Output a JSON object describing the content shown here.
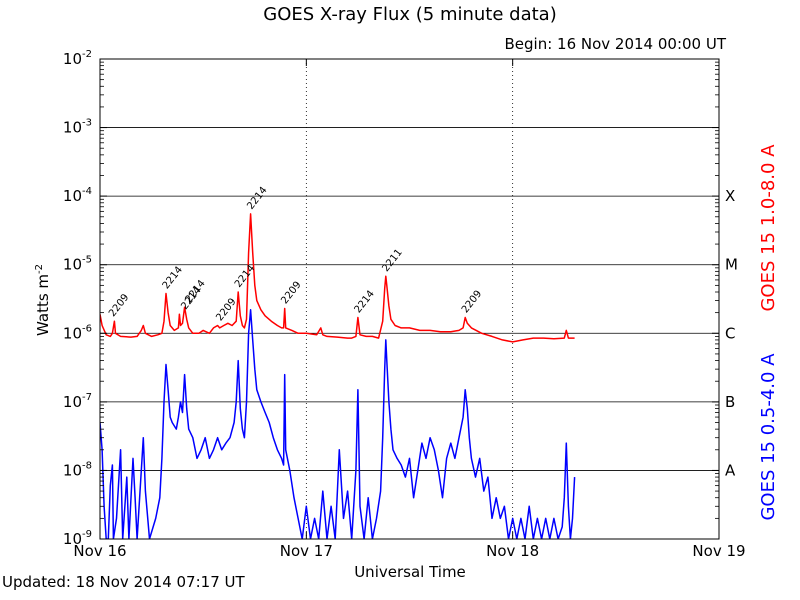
{
  "chart_data": {
    "type": "line",
    "title": "GOES X-ray Flux (5 minute data)",
    "begin_label": "Begin: 16 Nov 2014 00:00 UT",
    "updated_label": "Updated: 18 Nov 2014 07:17 UT",
    "xlabel": "Universal Time",
    "ylabel_base": "Watts m",
    "ylabel_exp": "-2",
    "x_units": "days since 16 Nov 2014 00:00 UT",
    "xlim": [
      0,
      3
    ],
    "x_ticks": [
      {
        "value": 0,
        "label": "Nov 16"
      },
      {
        "value": 1,
        "label": "Nov 17"
      },
      {
        "value": 2,
        "label": "Nov 18"
      },
      {
        "value": 3,
        "label": "Nov 19"
      }
    ],
    "y_scale": "log",
    "ylim": [
      1e-09,
      0.01
    ],
    "y_ticks": [
      {
        "exp": -9,
        "base": "10",
        "sup": "-9"
      },
      {
        "exp": -8,
        "base": "10",
        "sup": "-8"
      },
      {
        "exp": -7,
        "base": "10",
        "sup": "-7"
      },
      {
        "exp": -6,
        "base": "10",
        "sup": "-6"
      },
      {
        "exp": -5,
        "base": "10",
        "sup": "-5"
      },
      {
        "exp": -4,
        "base": "10",
        "sup": "-4"
      },
      {
        "exp": -3,
        "base": "10",
        "sup": "-3"
      },
      {
        "exp": -2,
        "base": "10",
        "sup": "-2"
      }
    ],
    "flare_classes": [
      {
        "label": "A",
        "value": 1e-08
      },
      {
        "label": "B",
        "value": 1e-07
      },
      {
        "label": "C",
        "value": 1e-06
      },
      {
        "label": "M",
        "value": 1e-05
      },
      {
        "label": "X",
        "value": 0.0001
      }
    ],
    "grid": {
      "horizontal": true,
      "vertical_dotted": [
        1,
        2
      ]
    },
    "series": [
      {
        "name": "GOES 15 1.0-8.0 A",
        "color": "#ff0000",
        "points": [
          [
            0.0,
            1.9e-06
          ],
          [
            0.01,
            1.3e-06
          ],
          [
            0.03,
            9.5e-07
          ],
          [
            0.05,
            9e-07
          ],
          [
            0.06,
            1e-06
          ],
          [
            0.07,
            1.5e-06
          ],
          [
            0.075,
            1e-06
          ],
          [
            0.1,
            9e-07
          ],
          [
            0.15,
            8.8e-07
          ],
          [
            0.18,
            9e-07
          ],
          [
            0.2,
            1.1e-06
          ],
          [
            0.21,
            1.3e-06
          ],
          [
            0.22,
            1e-06
          ],
          [
            0.25,
            9e-07
          ],
          [
            0.28,
            9.5e-07
          ],
          [
            0.3,
            1e-06
          ],
          [
            0.31,
            1.5e-06
          ],
          [
            0.32,
            3.8e-06
          ],
          [
            0.33,
            2e-06
          ],
          [
            0.34,
            1.3e-06
          ],
          [
            0.36,
            1.1e-06
          ],
          [
            0.38,
            1.2e-06
          ],
          [
            0.385,
            1.9e-06
          ],
          [
            0.39,
            1.3e-06
          ],
          [
            0.4,
            1.4e-06
          ],
          [
            0.41,
            2.4e-06
          ],
          [
            0.42,
            1.6e-06
          ],
          [
            0.43,
            1.2e-06
          ],
          [
            0.45,
            1e-06
          ],
          [
            0.48,
            1e-06
          ],
          [
            0.5,
            1.1e-06
          ],
          [
            0.53,
            1e-06
          ],
          [
            0.55,
            1.2e-06
          ],
          [
            0.57,
            1.3e-06
          ],
          [
            0.58,
            1.2e-06
          ],
          [
            0.6,
            1.3e-06
          ],
          [
            0.62,
            1.4e-06
          ],
          [
            0.64,
            1.3e-06
          ],
          [
            0.66,
            1.5e-06
          ],
          [
            0.67,
            4e-06
          ],
          [
            0.68,
            1.8e-06
          ],
          [
            0.69,
            1.3e-06
          ],
          [
            0.7,
            1.2e-06
          ],
          [
            0.71,
            1.6e-06
          ],
          [
            0.72,
            1.5e-05
          ],
          [
            0.73,
            5.5e-05
          ],
          [
            0.74,
            1.5e-05
          ],
          [
            0.75,
            5e-06
          ],
          [
            0.76,
            3e-06
          ],
          [
            0.78,
            2.2e-06
          ],
          [
            0.8,
            1.8e-06
          ],
          [
            0.83,
            1.5e-06
          ],
          [
            0.86,
            1.3e-06
          ],
          [
            0.88,
            1.2e-06
          ],
          [
            0.89,
            1.2e-06
          ],
          [
            0.895,
            2.3e-06
          ],
          [
            0.9,
            1.2e-06
          ],
          [
            0.93,
            1.1e-06
          ],
          [
            0.96,
            1e-06
          ],
          [
            1.0,
            1e-06
          ],
          [
            1.05,
            9.5e-07
          ],
          [
            1.07,
            1.2e-06
          ],
          [
            1.08,
            9.5e-07
          ],
          [
            1.1,
            9e-07
          ],
          [
            1.15,
            8.8e-07
          ],
          [
            1.2,
            8.5e-07
          ],
          [
            1.22,
            8.5e-07
          ],
          [
            1.24,
            9e-07
          ],
          [
            1.25,
            1.7e-06
          ],
          [
            1.26,
            9.5e-07
          ],
          [
            1.29,
            9e-07
          ],
          [
            1.32,
            9e-07
          ],
          [
            1.35,
            8.5e-07
          ],
          [
            1.37,
            1.5e-06
          ],
          [
            1.38,
            4.5e-06
          ],
          [
            1.385,
            6.8e-06
          ],
          [
            1.39,
            5e-06
          ],
          [
            1.4,
            2.5e-06
          ],
          [
            1.41,
            1.6e-06
          ],
          [
            1.43,
            1.3e-06
          ],
          [
            1.46,
            1.2e-06
          ],
          [
            1.5,
            1.2e-06
          ],
          [
            1.55,
            1.1e-06
          ],
          [
            1.6,
            1.1e-06
          ],
          [
            1.65,
            1.05e-06
          ],
          [
            1.7,
            1.05e-06
          ],
          [
            1.74,
            1.1e-06
          ],
          [
            1.76,
            1.2e-06
          ],
          [
            1.77,
            1.7e-06
          ],
          [
            1.78,
            1.4e-06
          ],
          [
            1.8,
            1.2e-06
          ],
          [
            1.85,
            1e-06
          ],
          [
            1.9,
            9e-07
          ],
          [
            1.95,
            8e-07
          ],
          [
            2.0,
            7.5e-07
          ],
          [
            2.05,
            8e-07
          ],
          [
            2.1,
            8.5e-07
          ],
          [
            2.15,
            8.5e-07
          ],
          [
            2.2,
            8.3e-07
          ],
          [
            2.25,
            8.5e-07
          ],
          [
            2.26,
            1.1e-06
          ],
          [
            2.27,
            8.5e-07
          ],
          [
            2.3,
            8.5e-07
          ]
        ]
      },
      {
        "name": "GOES 15 0.5-4.0 A",
        "color": "#0000ff",
        "points": [
          [
            0.0,
            5e-08
          ],
          [
            0.01,
            2e-08
          ],
          [
            0.02,
            3e-09
          ],
          [
            0.03,
            1e-09
          ],
          [
            0.04,
            1e-09
          ],
          [
            0.05,
            6e-09
          ],
          [
            0.06,
            1.2e-08
          ],
          [
            0.065,
            1e-09
          ],
          [
            0.08,
            2e-09
          ],
          [
            0.1,
            2e-08
          ],
          [
            0.11,
            1e-09
          ],
          [
            0.13,
            8e-09
          ],
          [
            0.14,
            1e-09
          ],
          [
            0.16,
            1.5e-08
          ],
          [
            0.17,
            4e-09
          ],
          [
            0.18,
            1e-09
          ],
          [
            0.2,
            1e-08
          ],
          [
            0.21,
            3e-08
          ],
          [
            0.22,
            5e-09
          ],
          [
            0.24,
            1e-09
          ],
          [
            0.27,
            2e-09
          ],
          [
            0.29,
            4e-09
          ],
          [
            0.3,
            1.5e-08
          ],
          [
            0.31,
            1e-07
          ],
          [
            0.32,
            3.5e-07
          ],
          [
            0.33,
            1.5e-07
          ],
          [
            0.34,
            6e-08
          ],
          [
            0.35,
            5e-08
          ],
          [
            0.37,
            4e-08
          ],
          [
            0.38,
            6e-08
          ],
          [
            0.39,
            1e-07
          ],
          [
            0.4,
            7e-08
          ],
          [
            0.41,
            2.5e-07
          ],
          [
            0.42,
            8e-08
          ],
          [
            0.43,
            4e-08
          ],
          [
            0.45,
            3e-08
          ],
          [
            0.47,
            1.5e-08
          ],
          [
            0.49,
            2e-08
          ],
          [
            0.51,
            3e-08
          ],
          [
            0.53,
            1.5e-08
          ],
          [
            0.55,
            2e-08
          ],
          [
            0.57,
            3e-08
          ],
          [
            0.59,
            2e-08
          ],
          [
            0.61,
            2.5e-08
          ],
          [
            0.63,
            3e-08
          ],
          [
            0.65,
            5e-08
          ],
          [
            0.66,
            1e-07
          ],
          [
            0.67,
            4e-07
          ],
          [
            0.68,
            8e-08
          ],
          [
            0.69,
            4e-08
          ],
          [
            0.7,
            3e-08
          ],
          [
            0.71,
            1e-07
          ],
          [
            0.72,
            1e-06
          ],
          [
            0.73,
            2.2e-06
          ],
          [
            0.74,
            8e-07
          ],
          [
            0.75,
            3e-07
          ],
          [
            0.76,
            1.5e-07
          ],
          [
            0.78,
            1e-07
          ],
          [
            0.8,
            7e-08
          ],
          [
            0.82,
            5e-08
          ],
          [
            0.84,
            3e-08
          ],
          [
            0.86,
            2e-08
          ],
          [
            0.88,
            1.5e-08
          ],
          [
            0.89,
            1.2e-08
          ],
          [
            0.895,
            2.5e-07
          ],
          [
            0.9,
            2e-08
          ],
          [
            0.92,
            1e-08
          ],
          [
            0.94,
            4e-09
          ],
          [
            0.96,
            2e-09
          ],
          [
            0.98,
            1e-09
          ],
          [
            1.0,
            3e-09
          ],
          [
            1.02,
            1e-09
          ],
          [
            1.04,
            2e-09
          ],
          [
            1.06,
            1e-09
          ],
          [
            1.08,
            5e-09
          ],
          [
            1.1,
            1e-09
          ],
          [
            1.12,
            3e-09
          ],
          [
            1.14,
            1e-09
          ],
          [
            1.16,
            2e-08
          ],
          [
            1.18,
            2e-09
          ],
          [
            1.2,
            5e-09
          ],
          [
            1.22,
            1e-09
          ],
          [
            1.24,
            1e-08
          ],
          [
            1.25,
            1.5e-07
          ],
          [
            1.26,
            3e-09
          ],
          [
            1.28,
            1e-09
          ],
          [
            1.3,
            4e-09
          ],
          [
            1.32,
            1e-09
          ],
          [
            1.34,
            2e-09
          ],
          [
            1.36,
            5e-09
          ],
          [
            1.37,
            3e-08
          ],
          [
            1.38,
            3e-07
          ],
          [
            1.385,
            8e-07
          ],
          [
            1.39,
            4e-07
          ],
          [
            1.4,
            1e-07
          ],
          [
            1.41,
            4e-08
          ],
          [
            1.42,
            2e-08
          ],
          [
            1.44,
            1.5e-08
          ],
          [
            1.46,
            1.2e-08
          ],
          [
            1.48,
            8e-09
          ],
          [
            1.5,
            1.5e-08
          ],
          [
            1.52,
            4e-09
          ],
          [
            1.54,
            1e-08
          ],
          [
            1.56,
            2.5e-08
          ],
          [
            1.58,
            1.5e-08
          ],
          [
            1.6,
            3e-08
          ],
          [
            1.62,
            2e-08
          ],
          [
            1.64,
            1e-08
          ],
          [
            1.66,
            4e-09
          ],
          [
            1.68,
            1.5e-08
          ],
          [
            1.7,
            2.5e-08
          ],
          [
            1.72,
            1.5e-08
          ],
          [
            1.74,
            3e-08
          ],
          [
            1.76,
            6e-08
          ],
          [
            1.77,
            1.5e-07
          ],
          [
            1.78,
            8e-08
          ],
          [
            1.79,
            3e-08
          ],
          [
            1.8,
            1.5e-08
          ],
          [
            1.82,
            8e-09
          ],
          [
            1.84,
            1.5e-08
          ],
          [
            1.86,
            5e-09
          ],
          [
            1.88,
            8e-09
          ],
          [
            1.9,
            2e-09
          ],
          [
            1.92,
            4e-09
          ],
          [
            1.94,
            2e-09
          ],
          [
            1.96,
            3e-09
          ],
          [
            1.98,
            1e-09
          ],
          [
            2.0,
            2e-09
          ],
          [
            2.02,
            1e-09
          ],
          [
            2.04,
            2e-09
          ],
          [
            2.06,
            1e-09
          ],
          [
            2.08,
            3e-09
          ],
          [
            2.1,
            1e-09
          ],
          [
            2.12,
            2e-09
          ],
          [
            2.14,
            1e-09
          ],
          [
            2.16,
            2e-09
          ],
          [
            2.18,
            1e-09
          ],
          [
            2.2,
            2e-09
          ],
          [
            2.22,
            1e-09
          ],
          [
            2.24,
            1.5e-09
          ],
          [
            2.25,
            4e-09
          ],
          [
            2.26,
            2.5e-08
          ],
          [
            2.27,
            3e-09
          ],
          [
            2.28,
            1e-09
          ],
          [
            2.29,
            2e-09
          ],
          [
            2.3,
            8e-09
          ]
        ]
      }
    ],
    "annotations": [
      {
        "text": "2209",
        "x": 0.06,
        "y": 1.5e-06
      },
      {
        "text": "2214",
        "x": 0.32,
        "y": 3.8e-06
      },
      {
        "text": "2214",
        "x": 0.41,
        "y": 1.9e-06
      },
      {
        "text": "2214",
        "x": 0.43,
        "y": 2.4e-06
      },
      {
        "text": "2209",
        "x": 0.58,
        "y": 1.3e-06
      },
      {
        "text": "2214",
        "x": 0.67,
        "y": 4e-06
      },
      {
        "text": "2214",
        "x": 0.73,
        "y": 5.5e-05
      },
      {
        "text": "2209",
        "x": 0.895,
        "y": 2.3e-06
      },
      {
        "text": "2214",
        "x": 1.25,
        "y": 1.7e-06
      },
      {
        "text": "2211",
        "x": 1.385,
        "y": 6.8e-06
      },
      {
        "text": "2209",
        "x": 1.77,
        "y": 1.7e-06
      }
    ]
  }
}
